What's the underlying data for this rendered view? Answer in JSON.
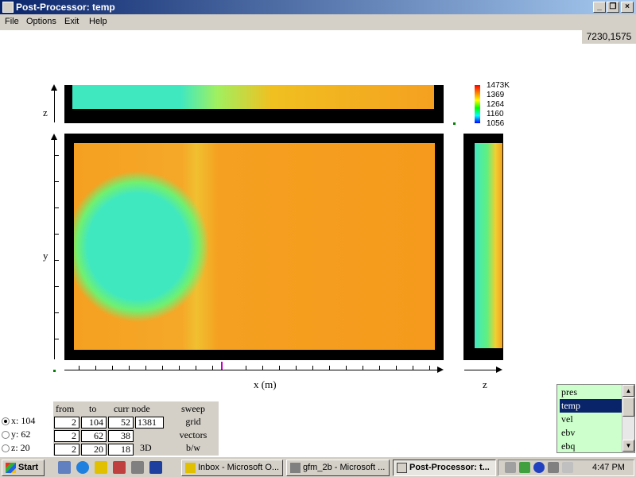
{
  "window": {
    "title": "Post-Processor: temp"
  },
  "menu": [
    "File",
    "Options",
    "Exit",
    "Help"
  ],
  "coords": "7230,1575",
  "axes": {
    "z_top": "z",
    "y_main": "y",
    "x_main": "x (m)",
    "z_side": "z"
  },
  "colorbar": {
    "labels": [
      "1473K",
      "1369",
      "1264",
      "1160",
      "1056"
    ],
    "colors": [
      "#ff0000",
      "#ffff00",
      "#00ff00",
      "#00ffff",
      "#0000ff"
    ]
  },
  "radios": [
    {
      "label": "x: 104",
      "checked": true
    },
    {
      "label": "y: 62",
      "checked": false
    },
    {
      "label": "z: 20",
      "checked": false
    }
  ],
  "table": {
    "headers": {
      "from": "from",
      "to": "to",
      "curr": "curr node"
    },
    "rows": [
      {
        "from": "2",
        "to": "104",
        "curr": "52"
      },
      {
        "from": "2",
        "to": "62",
        "curr": "38"
      },
      {
        "from": "2",
        "to": "20",
        "curr": "18"
      }
    ],
    "node_value": "1381",
    "btn_3d": "3D"
  },
  "side_buttons": [
    "sweep",
    "grid",
    "vectors",
    "b/w"
  ],
  "variables": {
    "items": [
      "pres",
      "temp",
      "vel",
      "ebv",
      "ebq"
    ],
    "selected": "temp"
  },
  "taskbar": {
    "start": "Start",
    "tasks": [
      {
        "label": "Inbox - Microsoft O...",
        "active": false
      },
      {
        "label": "gfm_2b - Microsoft ...",
        "active": false
      },
      {
        "label": "Post-Processor: t...",
        "active": true
      }
    ],
    "clock": "4:47 PM"
  }
}
